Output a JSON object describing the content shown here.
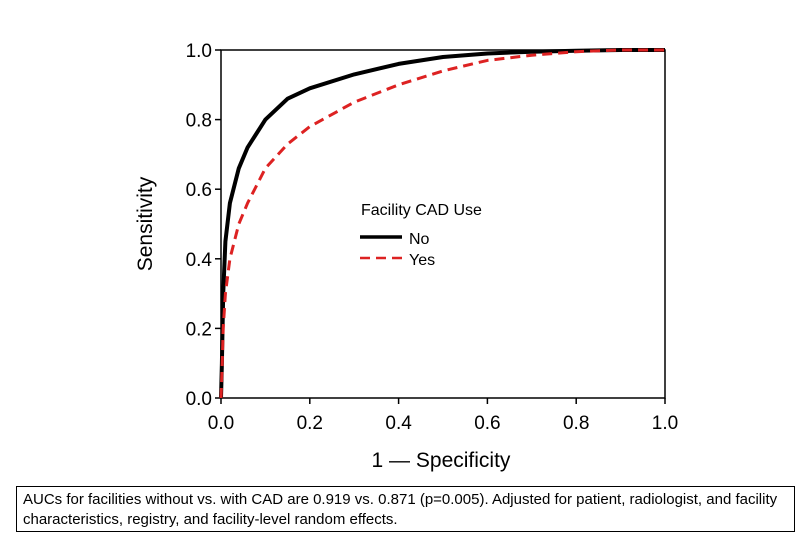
{
  "chart_data": {
    "type": "line",
    "title": "",
    "xlabel": "1 — Specificity",
    "ylabel": "Sensitivity",
    "xlim": [
      0,
      1
    ],
    "ylim": [
      0,
      1
    ],
    "x_ticks": [
      "0.0",
      "0.2",
      "0.4",
      "0.6",
      "0.8",
      "1.0"
    ],
    "y_ticks": [
      "0.0",
      "0.2",
      "0.4",
      "0.6",
      "0.8",
      "1.0"
    ],
    "grid": false,
    "legend": {
      "title": "Facility CAD Use",
      "placement": "center-right"
    },
    "series": [
      {
        "name": "No",
        "color": "#000000",
        "style": "solid",
        "x": [
          0,
          0.002,
          0.005,
          0.01,
          0.02,
          0.04,
          0.06,
          0.08,
          0.1,
          0.15,
          0.2,
          0.3,
          0.4,
          0.5,
          0.6,
          0.7,
          0.8,
          0.9,
          1.0
        ],
        "y": [
          0,
          0.1,
          0.3,
          0.45,
          0.56,
          0.66,
          0.72,
          0.76,
          0.8,
          0.86,
          0.89,
          0.93,
          0.96,
          0.98,
          0.99,
          0.995,
          0.998,
          1.0,
          1.0
        ]
      },
      {
        "name": "Yes",
        "color": "#dd2222",
        "style": "dashed",
        "x": [
          0,
          0.002,
          0.005,
          0.01,
          0.02,
          0.04,
          0.06,
          0.08,
          0.1,
          0.15,
          0.2,
          0.3,
          0.4,
          0.5,
          0.6,
          0.7,
          0.8,
          0.9,
          1.0
        ],
        "y": [
          0,
          0.07,
          0.2,
          0.3,
          0.4,
          0.5,
          0.56,
          0.61,
          0.66,
          0.73,
          0.78,
          0.85,
          0.9,
          0.94,
          0.97,
          0.985,
          0.995,
          1.0,
          1.0
        ]
      }
    ]
  },
  "caption": "AUCs for facilities without vs. with CAD are 0.919 vs. 0.871 (p=0.005).  Adjusted for patient, radiologist, and facility characteristics, registry, and facility-level random effects."
}
